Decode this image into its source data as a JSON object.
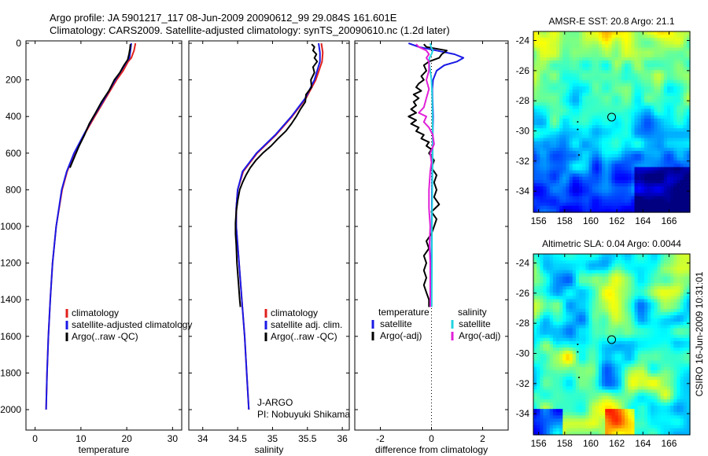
{
  "header": {
    "line1": "Argo profile: JA 5901217_117 08-Jun-2009 20090612_99 29.084S 161.601E",
    "line2": "Climatology: CARS2009. Satellite-adjusted climatology: synTS_20090610.nc (1.2d later)"
  },
  "side_label": "CSIRO 16-Jun-2009 10:31:01",
  "colors": {
    "red": "#e0201c",
    "blue": "#1a1ae6",
    "black": "#000000",
    "cyan": "#22d3e0",
    "magenta": "#e020d8"
  },
  "chart_data": [
    {
      "id": "temperature",
      "type": "line",
      "xlabel": "temperature",
      "xlim": [
        -2,
        32
      ],
      "xticks": [
        "0",
        "10",
        "20",
        "30"
      ],
      "ylim": [
        0,
        2060
      ],
      "yticks": [
        "0",
        "200",
        "400",
        "600",
        "800",
        "1000",
        "1200",
        "1400",
        "1600",
        "1800",
        "2000"
      ],
      "y_reversed": true,
      "legend": {
        "position": "bottom-right",
        "entries": [
          "climatology",
          "satellite-adjusted climatology",
          "Argo(..raw -QC)"
        ]
      },
      "series": [
        {
          "name": "climatology",
          "color": "red",
          "pressure": [
            0,
            40,
            80,
            100,
            150,
            200,
            300,
            400,
            500,
            600,
            700,
            800,
            1000,
            1200,
            1400,
            1600,
            1800,
            2000
          ],
          "values": [
            21.9,
            21.6,
            21.0,
            20.3,
            19.2,
            17.8,
            15.4,
            13.0,
            10.7,
            8.6,
            7.0,
            5.9,
            4.6,
            3.8,
            3.3,
            2.9,
            2.6,
            2.4
          ]
        },
        {
          "name": "satellite-adjusted climatology",
          "color": "blue",
          "pressure": [
            0,
            40,
            80,
            100,
            150,
            200,
            300,
            400,
            500,
            600,
            700,
            800,
            1000,
            1200,
            1400,
            1600,
            1800,
            2000
          ],
          "values": [
            21.0,
            20.8,
            20.6,
            20.0,
            18.8,
            17.5,
            15.2,
            12.8,
            10.6,
            8.5,
            6.9,
            5.8,
            4.6,
            3.8,
            3.3,
            2.9,
            2.6,
            2.4
          ]
        },
        {
          "name": "Argo(..raw -QC)",
          "color": "black",
          "pressure": [
            5,
            30,
            60,
            90,
            120,
            160,
            200,
            260,
            320,
            380,
            440,
            500,
            560,
            620,
            680
          ],
          "values": [
            20.8,
            20.7,
            20.5,
            20.2,
            19.4,
            18.5,
            17.3,
            16.1,
            14.5,
            13.2,
            11.8,
            10.8,
            9.6,
            8.6,
            7.6
          ]
        }
      ]
    },
    {
      "id": "salinity",
      "type": "line",
      "xlabel": "salinity",
      "xlim": [
        33.8,
        36.1
      ],
      "xticks": [
        "34",
        "34.5",
        "35",
        "35.5",
        "36"
      ],
      "ylim": [
        0,
        2060
      ],
      "y_reversed": true,
      "legend": {
        "position": "bottom-right",
        "entries": [
          "climatology",
          "satellite adj. clim.",
          "Argo(..raw -QC)"
        ]
      },
      "annotation": [
        "J-ARGO",
        "PI: Nobuyuki Shikama"
      ],
      "series": [
        {
          "name": "climatology",
          "color": "red",
          "pressure": [
            0,
            50,
            100,
            200,
            300,
            400,
            500,
            600,
            700,
            800,
            900,
            1000,
            1200,
            1400,
            1600,
            1800,
            2000
          ],
          "values": [
            35.7,
            35.72,
            35.71,
            35.62,
            35.48,
            35.28,
            35.05,
            34.78,
            34.58,
            34.5,
            34.48,
            34.48,
            34.52,
            34.56,
            34.6,
            34.63,
            34.66
          ]
        },
        {
          "name": "satellite adj. clim.",
          "color": "blue",
          "pressure": [
            0,
            50,
            100,
            200,
            300,
            400,
            500,
            600,
            700,
            800,
            900,
            1000,
            1200,
            1400,
            1600,
            1800,
            2000
          ],
          "values": [
            35.66,
            35.68,
            35.68,
            35.6,
            35.47,
            35.27,
            35.04,
            34.77,
            34.57,
            34.5,
            34.48,
            34.48,
            34.52,
            34.56,
            34.6,
            34.63,
            34.66
          ]
        },
        {
          "name": "Argo(..raw -QC)",
          "color": "black",
          "pressure": [
            5,
            20,
            40,
            60,
            80,
            100,
            130,
            160,
            200,
            240,
            280,
            320,
            360,
            400,
            440,
            480,
            520,
            560,
            600,
            640,
            680,
            720,
            760,
            800,
            860,
            920,
            980,
            1040,
            1100,
            1200,
            1300,
            1400,
            1440
          ],
          "values": [
            35.56,
            35.6,
            35.58,
            35.63,
            35.6,
            35.64,
            35.58,
            35.6,
            35.55,
            35.56,
            35.48,
            35.47,
            35.4,
            35.34,
            35.27,
            35.19,
            35.08,
            34.98,
            34.86,
            34.76,
            34.68,
            34.62,
            34.57,
            34.53,
            34.5,
            34.48,
            34.47,
            34.47,
            34.48,
            34.49,
            34.51,
            34.53,
            34.54
          ]
        }
      ]
    },
    {
      "id": "difference",
      "type": "line",
      "xlabel": "difference from climatology",
      "xlim": [
        -3.0,
        3.0
      ],
      "xticks": [
        "-2",
        "0",
        "2"
      ],
      "ylim": [
        0,
        2060
      ],
      "y_reversed": true,
      "legend": {
        "position": "bottom",
        "groups": [
          {
            "title": "temperature",
            "entries": [
              "satellite",
              "Argo(-adj)"
            ]
          },
          {
            "title": "salinity",
            "entries": [
              "satellite",
              "Argo(-adj)"
            ]
          }
        ]
      },
      "series": [
        {
          "name": "temperature satellite",
          "color": "blue",
          "pressure": [
            0,
            20,
            40,
            60,
            80,
            100,
            120,
            150,
            200,
            250,
            300,
            400,
            500,
            600,
            700,
            800,
            1000,
            1200,
            1400,
            1440
          ],
          "values": [
            -0.9,
            -0.5,
            0.2,
            0.9,
            1.25,
            1.0,
            0.5,
            0.2,
            0.06,
            0.03,
            0.04,
            0.06,
            0.05,
            0.04,
            0.03,
            0.02,
            0.01,
            0.0,
            0.0,
            0.0
          ]
        },
        {
          "name": "temperature Argo(-adj)",
          "color": "black",
          "pressure": [
            5,
            20,
            40,
            60,
            80,
            100,
            120,
            150,
            180,
            200,
            220,
            240,
            260,
            280,
            300,
            320,
            340,
            360,
            380,
            400,
            420,
            440,
            460,
            480,
            500,
            520,
            540,
            560,
            580,
            600,
            640,
            680,
            720,
            760,
            800,
            840,
            880,
            920,
            960,
            1000,
            1040,
            1080,
            1120,
            1160,
            1200,
            1240,
            1280,
            1320,
            1360,
            1400,
            1440
          ],
          "values": [
            -0.3,
            -0.2,
            0.6,
            0.4,
            0.3,
            -0.1,
            -0.3,
            -0.2,
            -0.4,
            -0.3,
            -0.5,
            -0.6,
            -0.4,
            -0.7,
            -0.5,
            -0.7,
            -0.6,
            -0.8,
            -0.6,
            -0.9,
            -0.6,
            -0.8,
            -0.5,
            -0.6,
            -0.3,
            -0.4,
            -0.1,
            -0.2,
            0.0,
            -0.1,
            0.1,
            0.0,
            0.2,
            0.1,
            0.2,
            0.1,
            0.3,
            0.0,
            0.2,
            0.1,
            0.0,
            -0.2,
            -0.1,
            -0.3,
            -0.2,
            -0.3,
            -0.2,
            -0.3,
            -0.2,
            -0.1,
            -0.1
          ]
        },
        {
          "name": "salinity satellite",
          "color": "cyan",
          "pressure": [
            0,
            20,
            40,
            60,
            80,
            100,
            150,
            200,
            300,
            400,
            500,
            600,
            700,
            800,
            1000,
            1200,
            1400,
            1440
          ],
          "values": [
            -0.05,
            -0.02,
            0.05,
            0.0,
            -0.08,
            -0.1,
            -0.05,
            0.0,
            0.03,
            0.04,
            0.05,
            0.04,
            0.04,
            0.03,
            0.02,
            0.02,
            0.01,
            0.01
          ]
        },
        {
          "name": "salinity Argo(-adj)",
          "color": "magenta",
          "pressure": [
            5,
            20,
            40,
            60,
            80,
            100,
            150,
            200,
            250,
            300,
            350,
            380,
            400,
            430,
            460,
            500,
            550,
            600,
            650,
            700,
            800,
            900,
            1000,
            1100,
            1200,
            1300,
            1400,
            1440
          ],
          "values": [
            -0.6,
            -0.5,
            -0.2,
            -0.1,
            -0.2,
            -0.1,
            -0.1,
            -0.2,
            -0.1,
            -0.2,
            -0.3,
            -0.5,
            -0.2,
            -0.3,
            -0.1,
            0.05,
            0.1,
            -0.05,
            0.0,
            -0.05,
            -0.1,
            -0.1,
            -0.05,
            -0.08,
            -0.05,
            -0.05,
            -0.05,
            -0.05
          ]
        }
      ]
    },
    {
      "id": "sst_map",
      "type": "heatmap",
      "title": "AMSR-E SST: 20.8 Argo: 21.1",
      "xticks": [
        "156",
        "158",
        "160",
        "162",
        "164",
        "166"
      ],
      "yticks": [
        "-24",
        "-26",
        "-28",
        "-30",
        "-32",
        "-34"
      ],
      "float_position": [
        161.6,
        -29.084
      ]
    },
    {
      "id": "sla_map",
      "type": "heatmap",
      "title": "Altimetric SLA: 0.04 Argo: 0.0044",
      "xticks": [
        "156",
        "158",
        "160",
        "162",
        "164",
        "166"
      ],
      "yticks": [
        "-24",
        "-26",
        "-28",
        "-30",
        "-32",
        "-34"
      ],
      "float_position": [
        161.6,
        -29.084
      ]
    }
  ]
}
